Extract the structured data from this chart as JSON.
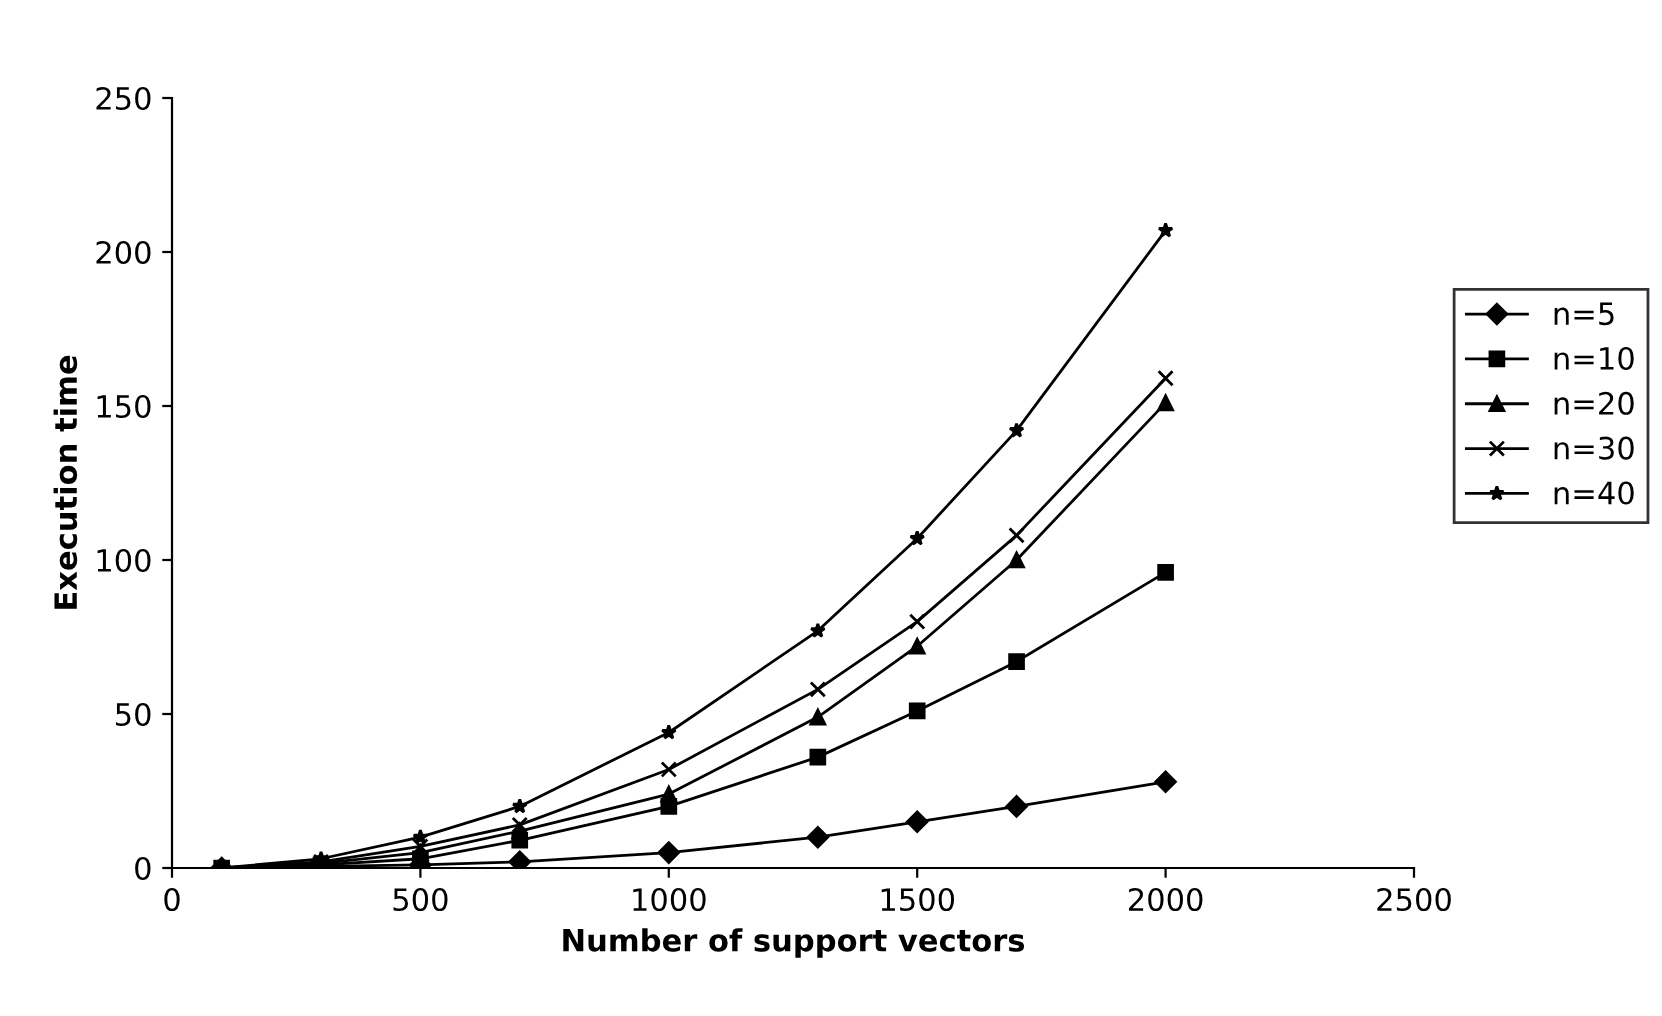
{
  "chart_data": {
    "type": "line",
    "xlabel": "Number of support vectors",
    "ylabel": "Execution time",
    "x": [
      100,
      300,
      500,
      700,
      1000,
      1300,
      1500,
      1700,
      2000
    ],
    "series": [
      {
        "name": "n=5",
        "color": "#000000",
        "marker": "diamond",
        "values": [
          0,
          0.5,
          1,
          2,
          5,
          10,
          15,
          20,
          28
        ]
      },
      {
        "name": "n=10",
        "color": "#000000",
        "marker": "square",
        "values": [
          0,
          1,
          3,
          9,
          20,
          36,
          51,
          67,
          96
        ]
      },
      {
        "name": "n=20",
        "color": "#000000",
        "marker": "triangle",
        "values": [
          0,
          1.5,
          5,
          12,
          24,
          49,
          72,
          100,
          151
        ]
      },
      {
        "name": "n=30",
        "color": "#000000",
        "marker": "cross",
        "values": [
          0,
          2,
          7,
          14,
          32,
          58,
          80,
          108,
          159
        ]
      },
      {
        "name": "n=40",
        "color": "#000000",
        "marker": "star",
        "values": [
          0,
          3,
          10,
          20,
          44,
          77,
          107,
          142,
          207
        ]
      }
    ],
    "xlim": [
      0,
      2500
    ],
    "xticks": [
      0,
      500,
      1000,
      1500,
      2000,
      2500
    ],
    "ylim": [
      0,
      250
    ],
    "yticks": [
      0,
      50,
      100,
      150,
      200,
      250
    ],
    "grid": false,
    "legend": "right",
    "line_style": "solid"
  }
}
